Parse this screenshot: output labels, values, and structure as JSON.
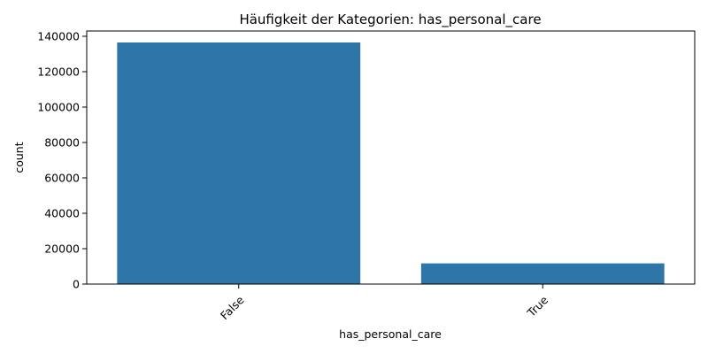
{
  "chart_data": {
    "type": "bar",
    "title": "Häufigkeit der Kategorien: has_personal_care",
    "xlabel": "has_personal_care",
    "ylabel": "count",
    "categories": [
      "False",
      "True"
    ],
    "values": [
      136500,
      11700
    ],
    "ylim": [
      0,
      143000
    ],
    "yticks": [
      0,
      20000,
      40000,
      60000,
      80000,
      100000,
      120000,
      140000
    ],
    "bar_color": "#2e75a8",
    "grid": false,
    "xtick_rotation": -45
  }
}
